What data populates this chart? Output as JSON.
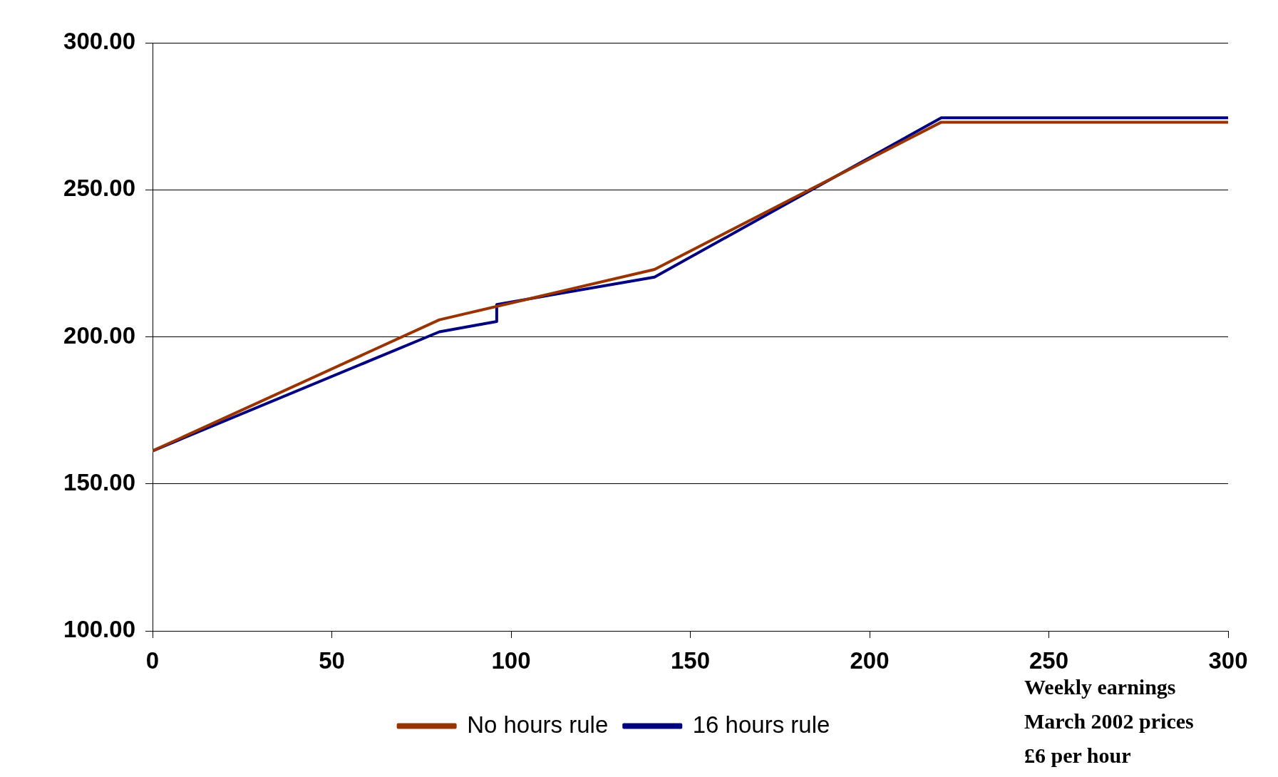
{
  "chart_data": {
    "type": "line",
    "series": [
      {
        "name": "No hours rule",
        "color": "#993300",
        "x": [
          0,
          80,
          140,
          220,
          300
        ],
        "values": [
          161.2,
          205.8,
          222.9,
          273,
          273
        ]
      },
      {
        "name": "16 hours rule",
        "color": "#000080",
        "x": [
          0,
          80,
          96,
          96,
          140,
          220,
          300
        ],
        "values": [
          161.2,
          201.7,
          205.2,
          211,
          220.3,
          274.5,
          274.5
        ]
      }
    ],
    "xlim": [
      0,
      300
    ],
    "xticks": [
      0,
      50,
      100,
      150,
      200,
      250,
      300
    ],
    "ylim": [
      100,
      300
    ],
    "yticks": [
      {
        "value": 100,
        "label": "100.00"
      },
      {
        "value": 150,
        "label": "150.00"
      },
      {
        "value": 200,
        "label": "200.00"
      },
      {
        "value": 250,
        "label": "250.00"
      },
      {
        "value": 300,
        "label": "300.00"
      }
    ],
    "grid": "y",
    "legend": "bottom",
    "marker": "none",
    "line_style": "solid",
    "annotations": [
      "Weekly earnings",
      "March 2002 prices",
      "£6 per hour"
    ]
  }
}
